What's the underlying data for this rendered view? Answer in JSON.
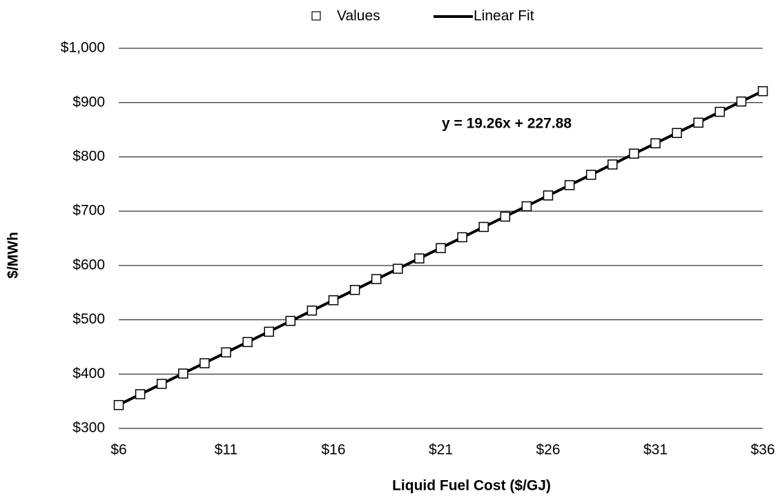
{
  "chart_data": {
    "type": "scatter",
    "x_label": "Liquid Fuel Cost ($/GJ)",
    "y_label": "$/MWh",
    "annotation": "y = 19.26x + 227.88",
    "series": [
      {
        "name": "Values",
        "marker": "square",
        "color": "#000000",
        "x": [
          6,
          7,
          8,
          9,
          10,
          11,
          12,
          13,
          14,
          15,
          16,
          17,
          18,
          19,
          20,
          21,
          22,
          23,
          24,
          25,
          26,
          27,
          28,
          29,
          30,
          31,
          32,
          33,
          34,
          35,
          36
        ],
        "values": [
          343,
          363,
          382,
          401,
          420,
          440,
          459,
          478,
          498,
          517,
          536,
          555,
          575,
          594,
          613,
          632,
          652,
          671,
          690,
          709,
          729,
          748,
          767,
          786,
          806,
          825,
          844,
          863,
          883,
          902,
          921
        ]
      },
      {
        "name": "Linear Fit",
        "marker": "line",
        "color": "#000000",
        "x": [
          6,
          36
        ],
        "values": [
          343.44,
          921.24
        ]
      }
    ],
    "xlim": [
      6,
      36
    ],
    "xticks": [
      {
        "value": 6,
        "label": "$6"
      },
      {
        "value": 11,
        "label": "$11"
      },
      {
        "value": 16,
        "label": "$16"
      },
      {
        "value": 21,
        "label": "$21"
      },
      {
        "value": 26,
        "label": "$26"
      },
      {
        "value": 31,
        "label": "$31"
      },
      {
        "value": 36,
        "label": "$36"
      }
    ],
    "ylim": [
      300,
      1000
    ],
    "yticks": [
      {
        "value": 300,
        "label": "$300"
      },
      {
        "value": 400,
        "label": "$400"
      },
      {
        "value": 500,
        "label": "$500"
      },
      {
        "value": 600,
        "label": "$600"
      },
      {
        "value": 700,
        "label": "$700"
      },
      {
        "value": 800,
        "label": "$800"
      },
      {
        "value": 900,
        "label": "$900"
      },
      {
        "value": 1000,
        "label": "$1,000"
      }
    ],
    "grid": true,
    "legend": "top"
  }
}
